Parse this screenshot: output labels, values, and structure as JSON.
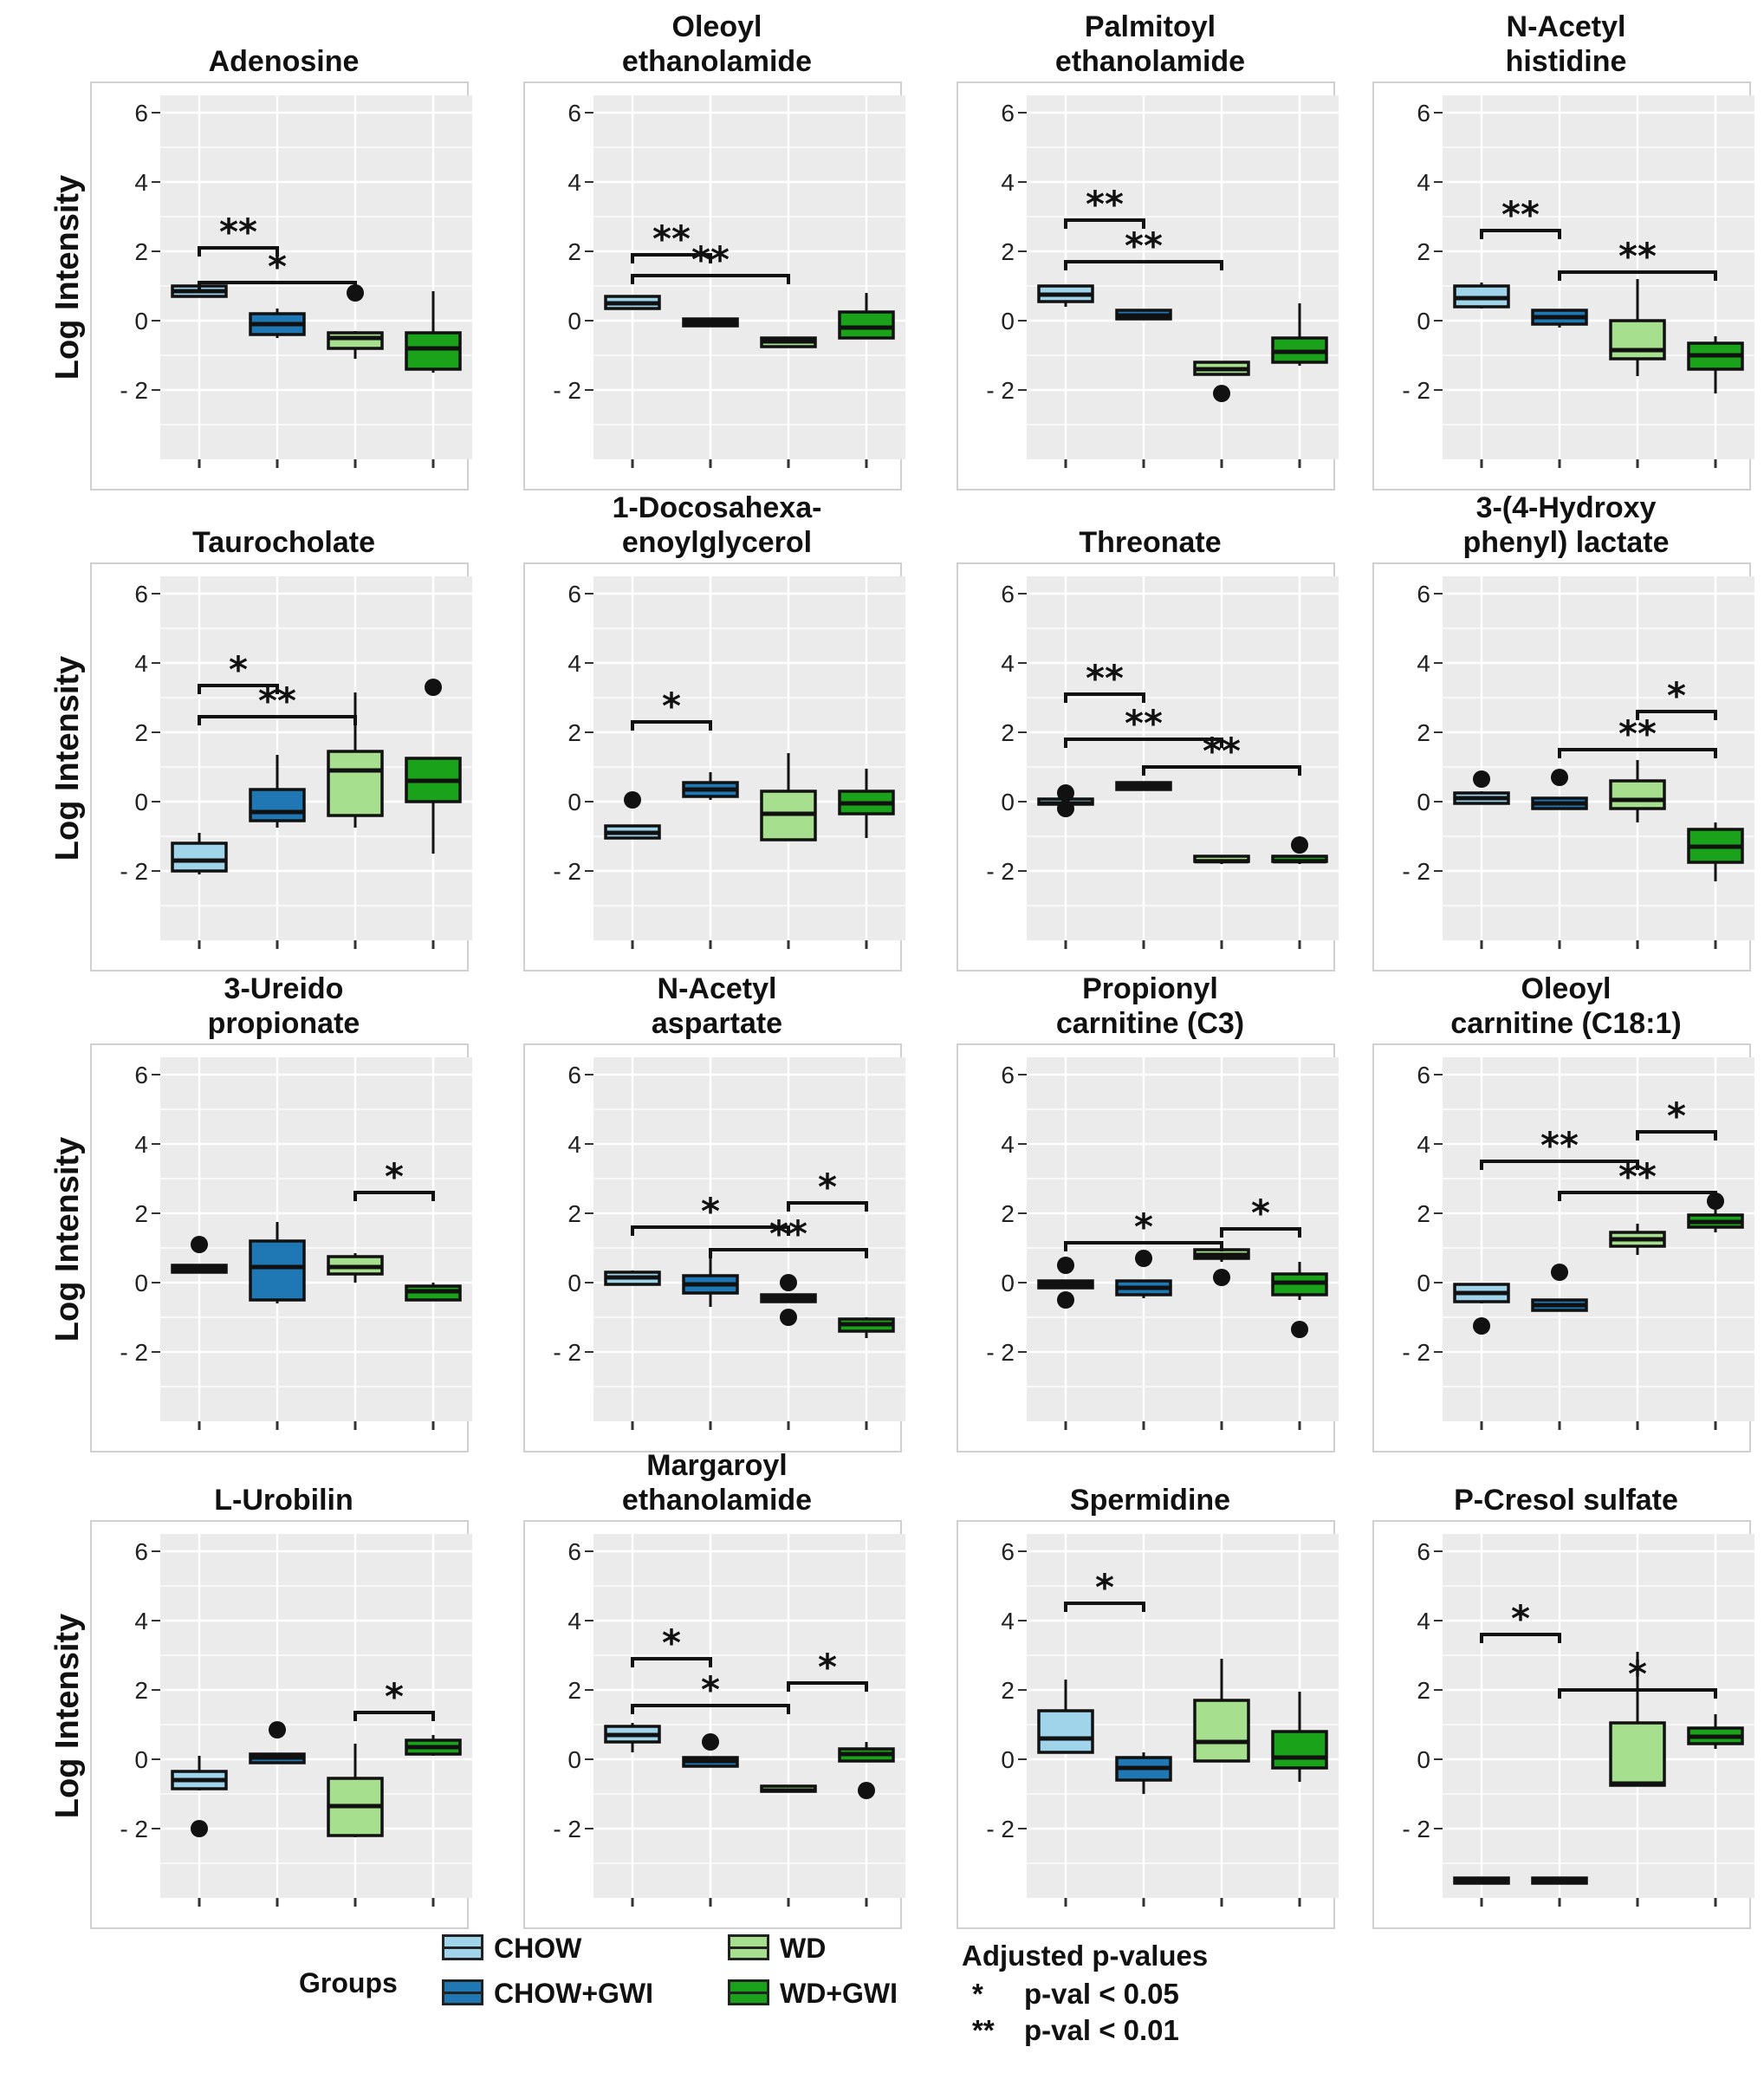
{
  "chart_data": {
    "type": "boxplot",
    "y_axis_label": "Log Intensity",
    "y_ticks": [
      "6",
      "4",
      "2",
      "0",
      "- 2"
    ],
    "y_tick_values": [
      6,
      4,
      2,
      0,
      -2
    ],
    "ylim": [
      -4,
      6.5
    ],
    "groups": [
      "CHOW",
      "CHOW+GWI",
      "WD",
      "WD+GWI"
    ],
    "group_colors": [
      "#9fd4ea",
      "#1f78b4",
      "#a6e08f",
      "#1aa31a"
    ],
    "panels": [
      {
        "title": [
          "Adenosine"
        ],
        "boxes": [
          {
            "q1": 0.7,
            "med": 0.85,
            "q3": 1.0,
            "min": 0.7,
            "max": 1.0,
            "out": []
          },
          {
            "q1": -0.4,
            "med": -0.1,
            "q3": 0.2,
            "min": -0.5,
            "max": 0.35,
            "out": []
          },
          {
            "q1": -0.8,
            "med": -0.5,
            "q3": -0.35,
            "min": -1.1,
            "max": -0.3,
            "out": [
              0.8
            ]
          },
          {
            "q1": -1.4,
            "med": -0.8,
            "q3": -0.35,
            "min": -1.5,
            "max": 0.85,
            "out": []
          }
        ],
        "sig": [
          {
            "from": 1,
            "to": 2,
            "y": 2.1,
            "label": "**"
          },
          {
            "from": 1,
            "to": 3,
            "y": 1.1,
            "label": "*"
          }
        ]
      },
      {
        "title": [
          "Oleoyl",
          "ethanolamide"
        ],
        "boxes": [
          {
            "q1": 0.35,
            "med": 0.5,
            "q3": 0.7,
            "min": 0.35,
            "max": 0.7,
            "out": []
          },
          {
            "q1": -0.15,
            "med": -0.05,
            "q3": 0.05,
            "min": -0.15,
            "max": 0.05,
            "out": []
          },
          {
            "q1": -0.75,
            "med": -0.6,
            "q3": -0.5,
            "min": -0.75,
            "max": -0.5,
            "out": []
          },
          {
            "q1": -0.5,
            "med": -0.2,
            "q3": 0.25,
            "min": -0.5,
            "max": 0.8,
            "out": []
          }
        ],
        "sig": [
          {
            "from": 1,
            "to": 2,
            "y": 1.9,
            "label": "**"
          },
          {
            "from": 1,
            "to": 3,
            "y": 1.3,
            "label": "**"
          }
        ]
      },
      {
        "title": [
          "Palmitoyl",
          "ethanolamide"
        ],
        "boxes": [
          {
            "q1": 0.55,
            "med": 0.75,
            "q3": 1.0,
            "min": 0.4,
            "max": 1.0,
            "out": []
          },
          {
            "q1": 0.05,
            "med": 0.15,
            "q3": 0.3,
            "min": 0.05,
            "max": 0.3,
            "out": []
          },
          {
            "q1": -1.55,
            "med": -1.4,
            "q3": -1.2,
            "min": -1.55,
            "max": -1.2,
            "out": [
              -2.1
            ]
          },
          {
            "q1": -1.2,
            "med": -0.9,
            "q3": -0.5,
            "min": -1.3,
            "max": 0.5,
            "out": []
          }
        ],
        "sig": [
          {
            "from": 1,
            "to": 2,
            "y": 2.9,
            "label": "**"
          },
          {
            "from": 1,
            "to": 3,
            "y": 1.7,
            "label": "**"
          }
        ]
      },
      {
        "title": [
          "N-Acetyl",
          "histidine"
        ],
        "boxes": [
          {
            "q1": 0.4,
            "med": 0.65,
            "q3": 1.0,
            "min": 0.35,
            "max": 1.1,
            "out": []
          },
          {
            "q1": -0.1,
            "med": 0.1,
            "q3": 0.3,
            "min": -0.2,
            "max": 0.3,
            "out": []
          },
          {
            "q1": -1.1,
            "med": -0.85,
            "q3": 0.0,
            "min": -1.6,
            "max": 1.2,
            "out": []
          },
          {
            "q1": -1.4,
            "med": -1.0,
            "q3": -0.65,
            "min": -2.1,
            "max": -0.45,
            "out": []
          }
        ],
        "sig": [
          {
            "from": 1,
            "to": 2,
            "y": 2.6,
            "label": "**"
          },
          {
            "from": 2,
            "to": 4,
            "y": 1.4,
            "label": "**"
          }
        ]
      },
      {
        "title": [
          "Taurocholate"
        ],
        "boxes": [
          {
            "q1": -2.0,
            "med": -1.7,
            "q3": -1.2,
            "min": -2.1,
            "max": -0.9,
            "out": []
          },
          {
            "q1": -0.55,
            "med": -0.3,
            "q3": 0.35,
            "min": -0.75,
            "max": 1.35,
            "out": []
          },
          {
            "q1": -0.4,
            "med": 0.9,
            "q3": 1.45,
            "min": -0.75,
            "max": 3.15,
            "out": []
          },
          {
            "q1": 0.0,
            "med": 0.6,
            "q3": 1.25,
            "min": -1.5,
            "max": 1.25,
            "out": [
              3.3
            ]
          }
        ],
        "sig": [
          {
            "from": 1,
            "to": 2,
            "y": 3.35,
            "label": "*"
          },
          {
            "from": 1,
            "to": 3,
            "y": 2.45,
            "label": "**"
          }
        ]
      },
      {
        "title": [
          "1-Docosahexa-",
          "enoylglycerol"
        ],
        "boxes": [
          {
            "q1": -1.05,
            "med": -0.9,
            "q3": -0.7,
            "min": -1.05,
            "max": -0.7,
            "out": [
              0.05
            ]
          },
          {
            "q1": 0.15,
            "med": 0.35,
            "q3": 0.55,
            "min": 0.05,
            "max": 0.85,
            "out": []
          },
          {
            "q1": -1.1,
            "med": -0.35,
            "q3": 0.3,
            "min": -1.1,
            "max": 1.4,
            "out": []
          },
          {
            "q1": -0.35,
            "med": -0.05,
            "q3": 0.3,
            "min": -1.05,
            "max": 0.95,
            "out": []
          }
        ],
        "sig": [
          {
            "from": 1,
            "to": 2,
            "y": 2.3,
            "label": "*"
          }
        ]
      },
      {
        "title": [
          "Threonate"
        ],
        "boxes": [
          {
            "q1": -0.1,
            "med": -0.05,
            "q3": 0.0,
            "min": -0.1,
            "max": 0.0,
            "out": [
              0.25,
              -0.2
            ]
          },
          {
            "q1": 0.35,
            "med": 0.45,
            "q3": 0.55,
            "min": 0.35,
            "max": 0.55,
            "out": []
          },
          {
            "q1": -1.8,
            "med": -1.72,
            "q3": -1.65,
            "min": -1.8,
            "max": -1.65,
            "out": []
          },
          {
            "q1": -1.8,
            "med": -1.72,
            "q3": -1.65,
            "min": -1.8,
            "max": -1.65,
            "out": [
              -1.25
            ]
          }
        ],
        "sig": [
          {
            "from": 1,
            "to": 2,
            "y": 3.1,
            "label": "**"
          },
          {
            "from": 1,
            "to": 3,
            "y": 1.8,
            "label": "**"
          },
          {
            "from": 2,
            "to": 4,
            "y": 1.0,
            "label": "**"
          }
        ]
      },
      {
        "title": [
          "3-(4-Hydroxy",
          "phenyl) lactate"
        ],
        "boxes": [
          {
            "q1": -0.05,
            "med": 0.1,
            "q3": 0.25,
            "min": -0.05,
            "max": 0.3,
            "out": [
              0.65
            ]
          },
          {
            "q1": -0.2,
            "med": -0.05,
            "q3": 0.1,
            "min": -0.2,
            "max": 0.1,
            "out": [
              0.7
            ]
          },
          {
            "q1": -0.2,
            "med": 0.05,
            "q3": 0.6,
            "min": -0.6,
            "max": 1.2,
            "out": []
          },
          {
            "q1": -1.75,
            "med": -1.3,
            "q3": -0.8,
            "min": -2.3,
            "max": -0.6,
            "out": []
          }
        ],
        "sig": [
          {
            "from": 3,
            "to": 4,
            "y": 2.6,
            "label": "*"
          },
          {
            "from": 2,
            "to": 4,
            "y": 1.5,
            "label": "**"
          }
        ]
      },
      {
        "title": [
          "3-Ureido",
          "propionate"
        ],
        "boxes": [
          {
            "q1": 0.3,
            "med": 0.4,
            "q3": 0.5,
            "min": 0.3,
            "max": 0.5,
            "out": [
              1.1
            ]
          },
          {
            "q1": -0.5,
            "med": 0.45,
            "q3": 1.2,
            "min": -0.6,
            "max": 1.75,
            "out": []
          },
          {
            "q1": 0.25,
            "med": 0.45,
            "q3": 0.75,
            "min": 0.0,
            "max": 0.85,
            "out": []
          },
          {
            "q1": -0.5,
            "med": -0.25,
            "q3": -0.1,
            "min": -0.5,
            "max": 0.0,
            "out": []
          }
        ],
        "sig": [
          {
            "from": 3,
            "to": 4,
            "y": 2.6,
            "label": "*"
          }
        ]
      },
      {
        "title": [
          "N-Acetyl",
          "aspartate"
        ],
        "boxes": [
          {
            "q1": -0.05,
            "med": 0.15,
            "q3": 0.3,
            "min": -0.05,
            "max": 0.35,
            "out": []
          },
          {
            "q1": -0.3,
            "med": -0.05,
            "q3": 0.2,
            "min": -0.7,
            "max": 0.8,
            "out": []
          },
          {
            "q1": -0.55,
            "med": -0.45,
            "q3": -0.35,
            "min": -0.55,
            "max": -0.35,
            "out": [
              0.0,
              -1.0
            ]
          },
          {
            "q1": -1.4,
            "med": -1.2,
            "q3": -1.05,
            "min": -1.6,
            "max": -1.0,
            "out": []
          }
        ],
        "sig": [
          {
            "from": 3,
            "to": 4,
            "y": 2.3,
            "label": "*"
          },
          {
            "from": 1,
            "to": 3,
            "y": 1.6,
            "label": "*"
          },
          {
            "from": 2,
            "to": 4,
            "y": 0.95,
            "label": "**"
          }
        ]
      },
      {
        "title": [
          "Propionyl",
          "carnitine (C3)"
        ],
        "boxes": [
          {
            "q1": -0.15,
            "med": -0.05,
            "q3": 0.05,
            "min": -0.15,
            "max": 0.05,
            "out": [
              0.5,
              -0.5
            ]
          },
          {
            "q1": -0.35,
            "med": -0.15,
            "q3": 0.05,
            "min": -0.45,
            "max": 0.05,
            "out": [
              0.7
            ]
          },
          {
            "q1": 0.7,
            "med": 0.8,
            "q3": 0.95,
            "min": 0.6,
            "max": 1.05,
            "out": [
              0.15
            ]
          },
          {
            "q1": -0.35,
            "med": 0.0,
            "q3": 0.25,
            "min": -0.5,
            "max": 0.6,
            "out": [
              -1.35
            ]
          }
        ],
        "sig": [
          {
            "from": 3,
            "to": 4,
            "y": 1.55,
            "label": "*"
          },
          {
            "from": 1,
            "to": 3,
            "y": 1.15,
            "label": "*"
          }
        ]
      },
      {
        "title": [
          "Oleoyl",
          "carnitine (C18:1)"
        ],
        "boxes": [
          {
            "q1": -0.55,
            "med": -0.3,
            "q3": -0.05,
            "min": -0.6,
            "max": -0.05,
            "out": [
              -1.25
            ]
          },
          {
            "q1": -0.8,
            "med": -0.65,
            "q3": -0.5,
            "min": -0.8,
            "max": -0.5,
            "out": [
              0.3
            ]
          },
          {
            "q1": 1.05,
            "med": 1.25,
            "q3": 1.45,
            "min": 0.8,
            "max": 1.7,
            "out": []
          },
          {
            "q1": 1.6,
            "med": 1.75,
            "q3": 1.95,
            "min": 1.45,
            "max": 2.1,
            "out": [
              2.35
            ]
          }
        ],
        "sig": [
          {
            "from": 3,
            "to": 4,
            "y": 4.35,
            "label": "*"
          },
          {
            "from": 1,
            "to": 3,
            "y": 3.5,
            "label": "**"
          },
          {
            "from": 2,
            "to": 4,
            "y": 2.6,
            "label": "**"
          }
        ]
      },
      {
        "title": [
          "L-Urobilin"
        ],
        "boxes": [
          {
            "q1": -0.85,
            "med": -0.6,
            "q3": -0.35,
            "min": -0.9,
            "max": 0.1,
            "out": [
              -2.0
            ]
          },
          {
            "q1": -0.1,
            "med": 0.05,
            "q3": 0.15,
            "min": -0.1,
            "max": 0.15,
            "out": [
              0.85
            ]
          },
          {
            "q1": -2.2,
            "med": -1.35,
            "q3": -0.55,
            "min": -2.25,
            "max": 0.45,
            "out": []
          },
          {
            "q1": 0.15,
            "med": 0.35,
            "q3": 0.55,
            "min": 0.1,
            "max": 0.7,
            "out": []
          }
        ],
        "sig": [
          {
            "from": 3,
            "to": 4,
            "y": 1.35,
            "label": "*"
          }
        ]
      },
      {
        "title": [
          "Margaroyl",
          "ethanolamide"
        ],
        "boxes": [
          {
            "q1": 0.5,
            "med": 0.7,
            "q3": 0.95,
            "min": 0.2,
            "max": 1.05,
            "out": []
          },
          {
            "q1": -0.2,
            "med": -0.05,
            "q3": 0.05,
            "min": -0.2,
            "max": 0.05,
            "out": [
              0.5
            ]
          },
          {
            "q1": -0.95,
            "med": -0.9,
            "q3": -0.85,
            "min": -0.95,
            "max": -0.85,
            "out": []
          },
          {
            "q1": -0.05,
            "med": 0.15,
            "q3": 0.3,
            "min": -0.05,
            "max": 0.5,
            "out": [
              -0.9
            ]
          }
        ],
        "sig": [
          {
            "from": 1,
            "to": 2,
            "y": 2.9,
            "label": "*"
          },
          {
            "from": 3,
            "to": 4,
            "y": 2.2,
            "label": "*"
          },
          {
            "from": 1,
            "to": 3,
            "y": 1.55,
            "label": "*"
          }
        ]
      },
      {
        "title": [
          "Spermidine"
        ],
        "boxes": [
          {
            "q1": 0.2,
            "med": 0.6,
            "q3": 1.4,
            "min": 0.2,
            "max": 2.3,
            "out": []
          },
          {
            "q1": -0.6,
            "med": -0.25,
            "q3": 0.05,
            "min": -1.0,
            "max": 0.2,
            "out": []
          },
          {
            "q1": -0.05,
            "med": 0.5,
            "q3": 1.7,
            "min": -0.05,
            "max": 2.9,
            "out": []
          },
          {
            "q1": -0.25,
            "med": 0.05,
            "q3": 0.8,
            "min": -0.65,
            "max": 1.95,
            "out": []
          }
        ],
        "sig": [
          {
            "from": 1,
            "to": 2,
            "y": 4.5,
            "label": "*"
          }
        ]
      },
      {
        "title": [
          "P-Cresol sulfate"
        ],
        "boxes": [
          {
            "q1": -3.5,
            "med": -3.5,
            "q3": -3.5,
            "min": -3.5,
            "max": -3.5,
            "out": []
          },
          {
            "q1": -3.5,
            "med": -3.5,
            "q3": -3.5,
            "min": -3.5,
            "max": -3.5,
            "out": []
          },
          {
            "q1": -0.75,
            "med": -0.7,
            "q3": 1.05,
            "min": -0.75,
            "max": 3.1,
            "out": []
          },
          {
            "q1": 0.45,
            "med": 0.65,
            "q3": 0.9,
            "min": 0.3,
            "max": 1.3,
            "out": []
          }
        ],
        "sig": [
          {
            "from": 1,
            "to": 2,
            "y": 3.6,
            "label": "*"
          },
          {
            "from": 2,
            "to": 4,
            "y": 2.0,
            "label": "*"
          }
        ]
      }
    ]
  },
  "legend": {
    "title": "Groups",
    "items": [
      {
        "label": "CHOW",
        "color": "#9fd4ea"
      },
      {
        "label": "CHOW+GWI",
        "color": "#1f78b4"
      },
      {
        "label": "WD",
        "color": "#a6e08f"
      },
      {
        "label": "WD+GWI",
        "color": "#1aa31a"
      }
    ]
  },
  "pvalues": {
    "title": "Adjusted p-values",
    "rows": [
      {
        "symbol": "*",
        "text": "p-val < 0.05"
      },
      {
        "symbol": "**",
        "text": "p-val < 0.01"
      }
    ]
  }
}
